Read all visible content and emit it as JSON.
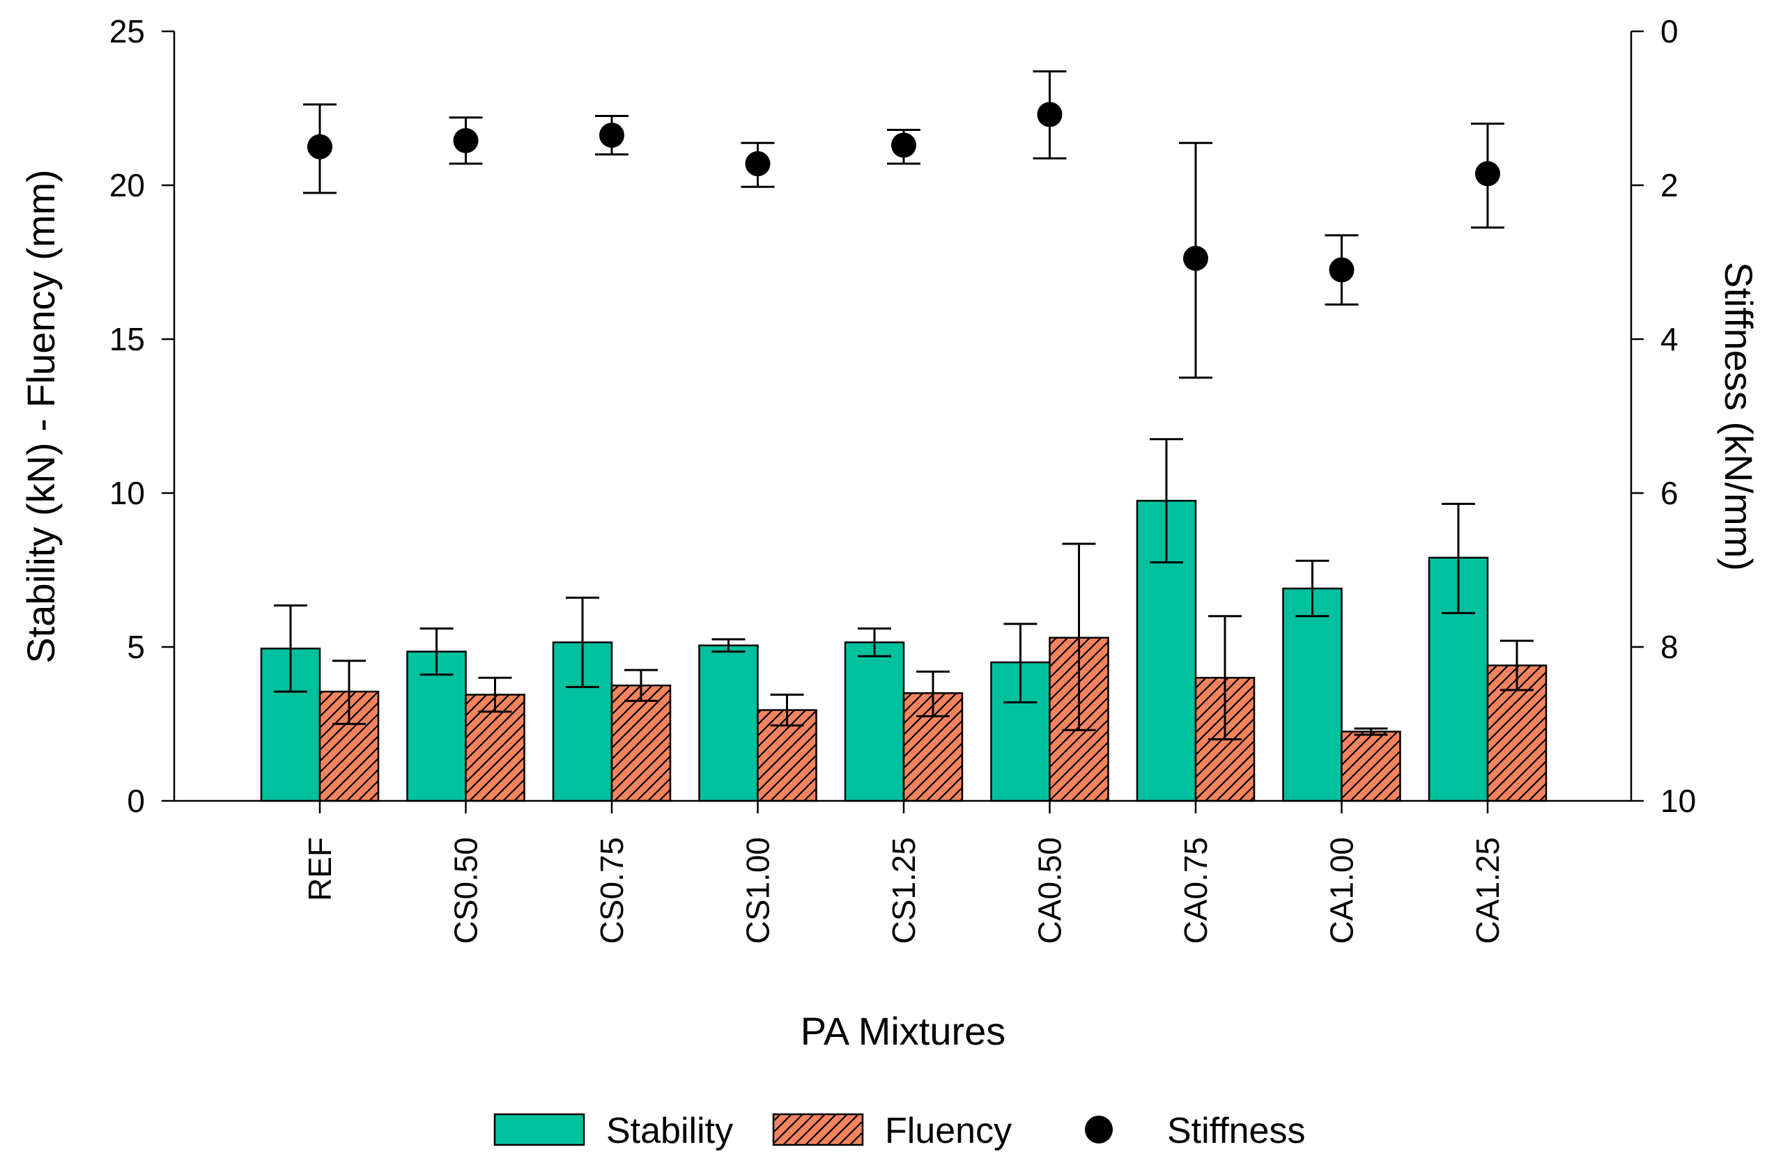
{
  "chart_data": {
    "type": "bar",
    "xlabel": "PA Mixtures",
    "ylabel": "Stability (kN) - Fluency (mm)",
    "y2label": "Stiffness (kN/mm)",
    "ylim": [
      0,
      25
    ],
    "y2lim": [
      0,
      10
    ],
    "y2_inverted": true,
    "yticks": [
      0,
      5,
      10,
      15,
      20,
      25
    ],
    "y2ticks": [
      0,
      2,
      4,
      6,
      8,
      10
    ],
    "categories": [
      "REF",
      "CS0.50",
      "CS0.75",
      "CS1.00",
      "CS1.25",
      "CA0.50",
      "CA0.75",
      "CA1.00",
      "CA1.25"
    ],
    "series": [
      {
        "name": "Stability",
        "kind": "bar",
        "axis": "left",
        "color": "#00c19e",
        "values": [
          4.95,
          4.85,
          5.15,
          5.05,
          5.15,
          4.5,
          9.75,
          6.9,
          7.9
        ],
        "err_low": [
          3.55,
          4.1,
          3.7,
          4.85,
          4.7,
          3.2,
          7.75,
          6.0,
          6.1
        ],
        "err_high": [
          6.35,
          5.6,
          6.6,
          5.25,
          5.6,
          5.75,
          11.75,
          7.8,
          9.65
        ]
      },
      {
        "name": "Fluency",
        "kind": "hatched-bar",
        "axis": "left",
        "color": "#f5845e",
        "values": [
          3.55,
          3.45,
          3.75,
          2.95,
          3.5,
          5.3,
          4.0,
          2.25,
          4.4
        ],
        "err_low": [
          2.5,
          2.9,
          3.25,
          2.45,
          2.75,
          2.3,
          2.0,
          2.15,
          3.6
        ],
        "err_high": [
          4.55,
          4.0,
          4.25,
          3.45,
          4.2,
          8.35,
          6.0,
          2.35,
          5.2
        ]
      },
      {
        "name": "Stiffness",
        "kind": "scatter",
        "axis": "right",
        "color": "#000000",
        "values": [
          1.5,
          1.42,
          1.35,
          1.72,
          1.48,
          1.08,
          2.95,
          3.1,
          1.85
        ],
        "err_low": [
          2.1,
          1.72,
          1.6,
          2.02,
          1.72,
          1.65,
          4.5,
          3.55,
          2.55
        ],
        "err_high": [
          0.95,
          1.12,
          1.1,
          1.45,
          1.28,
          0.52,
          1.45,
          2.65,
          1.2
        ]
      }
    ],
    "legend_position": "bottom"
  }
}
